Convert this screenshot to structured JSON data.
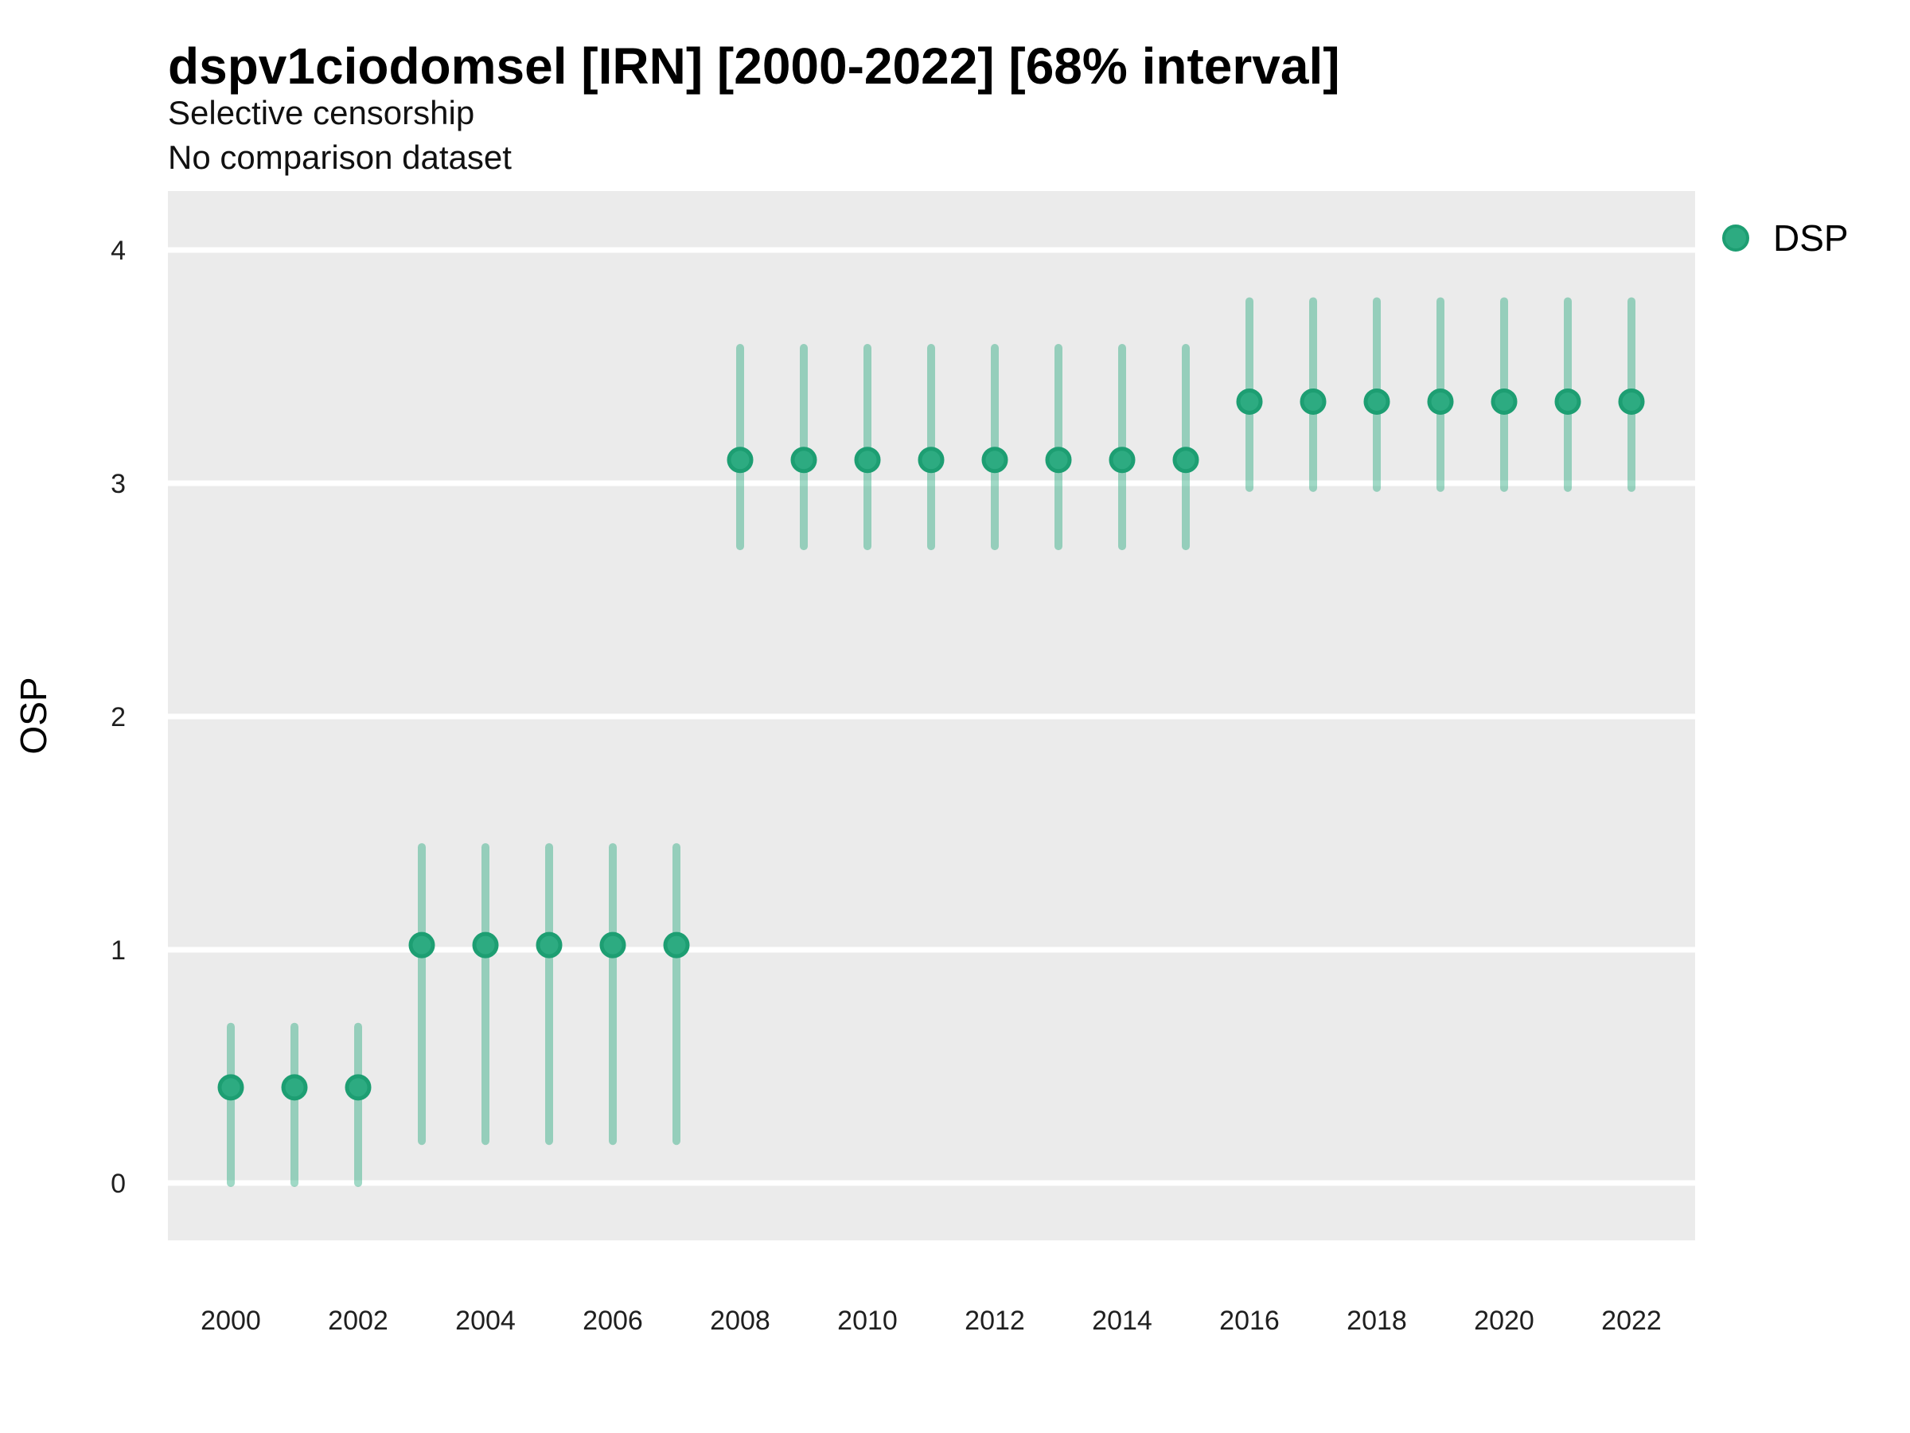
{
  "header": {
    "title": "dspv1ciodomsel [IRN] [2000-2022] [68% interval]",
    "subtitle_line1": "Selective censorship",
    "subtitle_line2": "No comparison dataset"
  },
  "legend": {
    "label": "DSP",
    "position": "right"
  },
  "colors": {
    "point_fill": "#2dab81",
    "point_ring": "#1d9e72",
    "range_line": "#2dab81",
    "range_line_opacity": 0.45,
    "panel_background": "#ebebeb",
    "gridline": "#ffffff",
    "text": "#000000"
  },
  "chart_data": {
    "type": "scatter",
    "mark": "pointrange",
    "title": "dspv1ciodomsel [IRN] [2000-2022] [68% interval]",
    "subtitle": [
      "Selective censorship",
      "No comparison dataset"
    ],
    "interval": "68%",
    "xlabel": "",
    "ylabel": "OSP",
    "xlim": [
      1999,
      2023
    ],
    "ylim": [
      -0.25,
      4.25
    ],
    "grid": "horizontal-major-only",
    "legend_position": "right",
    "x_tick_labels": [
      "2000",
      "2002",
      "2004",
      "2006",
      "2008",
      "2010",
      "2012",
      "2014",
      "2016",
      "2018",
      "2020",
      "2022"
    ],
    "x_tick_values": [
      2000,
      2002,
      2004,
      2006,
      2008,
      2010,
      2012,
      2014,
      2016,
      2018,
      2020,
      2022
    ],
    "y_tick_labels": [
      "0",
      "1",
      "2",
      "3",
      "4"
    ],
    "y_tick_values": [
      0,
      1,
      2,
      3,
      4
    ],
    "series": [
      {
        "name": "DSP",
        "color": "#2dab81",
        "x": [
          2000,
          2001,
          2002,
          2003,
          2004,
          2005,
          2006,
          2007,
          2008,
          2009,
          2010,
          2011,
          2012,
          2013,
          2014,
          2015,
          2016,
          2017,
          2018,
          2019,
          2020,
          2021,
          2022
        ],
        "y": [
          0.41,
          0.41,
          0.41,
          1.02,
          1.02,
          1.02,
          1.02,
          1.02,
          3.1,
          3.1,
          3.1,
          3.1,
          3.1,
          3.1,
          3.1,
          3.1,
          3.35,
          3.35,
          3.35,
          3.35,
          3.35,
          3.35,
          3.35
        ],
        "y_lo": [
          0.0,
          0.0,
          0.0,
          0.18,
          0.18,
          0.18,
          0.18,
          0.18,
          2.73,
          2.73,
          2.73,
          2.73,
          2.73,
          2.73,
          2.73,
          2.73,
          2.98,
          2.98,
          2.98,
          2.98,
          2.98,
          2.98,
          2.98
        ],
        "y_hi": [
          0.67,
          0.67,
          0.67,
          1.44,
          1.44,
          1.44,
          1.44,
          1.44,
          3.58,
          3.58,
          3.58,
          3.58,
          3.58,
          3.58,
          3.58,
          3.58,
          3.78,
          3.78,
          3.78,
          3.78,
          3.78,
          3.78,
          3.78
        ]
      }
    ]
  }
}
